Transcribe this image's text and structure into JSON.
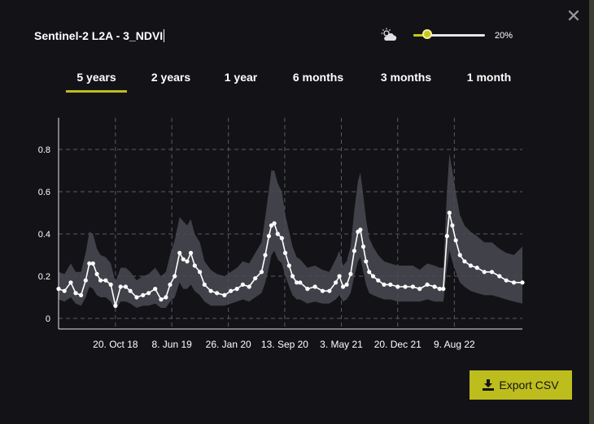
{
  "header": {
    "title": "Sentinel-2 L2A - 3_NDVI",
    "close_icon": "close-icon",
    "cloud_icon": "cloud-sun-icon",
    "cloud_coverage_label": "20%",
    "cloud_coverage_fraction": 0.2
  },
  "tabs": [
    {
      "label": "5 years",
      "active": true
    },
    {
      "label": "2 years",
      "active": false
    },
    {
      "label": "1 year",
      "active": false
    },
    {
      "label": "6 months",
      "active": false
    },
    {
      "label": "3 months",
      "active": false
    },
    {
      "label": "1 month",
      "active": false
    }
  ],
  "export": {
    "label": "Export CSV",
    "icon": "download-icon"
  },
  "colors": {
    "accent": "#bdbd1e",
    "background": "#131317",
    "band": "#4a4a52",
    "line": "#ffffff"
  },
  "chart_data": {
    "type": "line",
    "x_type": "date",
    "x_range": [
      "2018-03-01",
      "2023-05-15"
    ],
    "ylim": [
      -0.05,
      0.95
    ],
    "yticks": [
      0,
      0.2,
      0.4,
      0.6,
      0.8
    ],
    "ytick_labels": [
      "0",
      "0.2",
      "0.4",
      "0.6",
      "0.8"
    ],
    "xticks": [
      "2018-10-20",
      "2019-06-08",
      "2020-01-26",
      "2020-09-13",
      "2021-05-03",
      "2021-12-20",
      "2022-08-09"
    ],
    "xtick_labels": [
      "20. Oct 18",
      "8. Jun 19",
      "26. Jan 20",
      "13. Sep 20",
      "3. May 21",
      "20. Dec 21",
      "9. Aug 22"
    ],
    "grid": true,
    "series": [
      {
        "x": [
          "2018-03-01",
          "2018-03-25",
          "2018-04-20",
          "2018-05-10",
          "2018-06-01",
          "2018-06-20",
          "2018-07-05",
          "2018-07-20",
          "2018-08-05",
          "2018-08-20",
          "2018-09-10",
          "2018-10-01",
          "2018-10-20",
          "2018-11-10",
          "2018-12-01",
          "2018-12-20",
          "2019-01-15",
          "2019-02-10",
          "2019-03-05",
          "2019-04-01",
          "2019-04-25",
          "2019-05-15",
          "2019-06-01",
          "2019-06-20",
          "2019-07-10",
          "2019-07-25",
          "2019-08-10",
          "2019-08-25",
          "2019-09-10",
          "2019-10-01",
          "2019-10-20",
          "2019-11-15",
          "2019-12-10",
          "2020-01-10",
          "2020-02-05",
          "2020-03-01",
          "2020-03-25",
          "2020-04-20",
          "2020-05-15",
          "2020-06-10",
          "2020-06-25",
          "2020-07-10",
          "2020-07-20",
          "2020-08-01",
          "2020-08-15",
          "2020-09-01",
          "2020-09-15",
          "2020-10-01",
          "2020-10-15",
          "2020-11-01",
          "2020-11-15",
          "2020-12-15",
          "2021-01-15",
          "2021-02-15",
          "2021-03-15",
          "2021-04-10",
          "2021-04-25",
          "2021-05-10",
          "2021-05-25",
          "2021-06-10",
          "2021-06-25",
          "2021-07-10",
          "2021-07-20",
          "2021-08-01",
          "2021-08-12",
          "2021-08-25",
          "2021-09-10",
          "2021-10-01",
          "2021-10-25",
          "2021-11-20",
          "2021-12-20",
          "2022-01-20",
          "2022-02-20",
          "2022-03-20",
          "2022-04-20",
          "2022-05-20",
          "2022-06-10",
          "2022-06-25",
          "2022-07-10",
          "2022-07-20",
          "2022-08-01",
          "2022-08-15",
          "2022-09-01",
          "2022-09-20",
          "2022-10-15",
          "2022-11-10",
          "2022-12-10",
          "2023-01-10",
          "2023-02-10",
          "2023-03-10",
          "2023-04-10",
          "2023-05-15"
        ],
        "values": [
          0.14,
          0.13,
          0.17,
          0.12,
          0.11,
          0.18,
          0.26,
          0.26,
          0.21,
          0.18,
          0.18,
          0.16,
          0.06,
          0.15,
          0.15,
          0.13,
          0.1,
          0.11,
          0.12,
          0.14,
          0.09,
          0.1,
          0.16,
          0.2,
          0.31,
          0.28,
          0.27,
          0.31,
          0.25,
          0.22,
          0.16,
          0.13,
          0.12,
          0.11,
          0.13,
          0.14,
          0.16,
          0.15,
          0.19,
          0.22,
          0.3,
          0.39,
          0.44,
          0.45,
          0.4,
          0.38,
          0.31,
          0.25,
          0.2,
          0.17,
          0.17,
          0.14,
          0.15,
          0.13,
          0.13,
          0.17,
          0.2,
          0.15,
          0.16,
          0.21,
          0.32,
          0.41,
          0.42,
          0.34,
          0.27,
          0.22,
          0.2,
          0.18,
          0.16,
          0.16,
          0.15,
          0.15,
          0.15,
          0.14,
          0.16,
          0.15,
          0.14,
          0.14,
          0.39,
          0.5,
          0.44,
          0.37,
          0.3,
          0.27,
          0.25,
          0.24,
          0.22,
          0.22,
          0.2,
          0.18,
          0.17,
          0.17
        ],
        "band_lower": [
          0.09,
          0.08,
          0.1,
          0.07,
          0.06,
          0.1,
          0.15,
          0.14,
          0.11,
          0.1,
          0.1,
          0.08,
          0.04,
          0.08,
          0.08,
          0.07,
          0.05,
          0.06,
          0.06,
          0.07,
          0.05,
          0.05,
          0.08,
          0.1,
          0.17,
          0.14,
          0.14,
          0.16,
          0.13,
          0.11,
          0.08,
          0.06,
          0.06,
          0.06,
          0.07,
          0.08,
          0.09,
          0.08,
          0.1,
          0.12,
          0.17,
          0.24,
          0.3,
          0.32,
          0.28,
          0.26,
          0.2,
          0.15,
          0.11,
          0.09,
          0.09,
          0.07,
          0.08,
          0.07,
          0.07,
          0.09,
          0.11,
          0.08,
          0.09,
          0.12,
          0.2,
          0.27,
          0.29,
          0.22,
          0.16,
          0.12,
          0.11,
          0.1,
          0.09,
          0.09,
          0.08,
          0.08,
          0.08,
          0.08,
          0.09,
          0.08,
          0.08,
          0.08,
          0.24,
          0.32,
          0.27,
          0.22,
          0.17,
          0.15,
          0.13,
          0.12,
          0.11,
          0.11,
          0.1,
          0.09,
          0.08,
          0.07
        ],
        "band_upper": [
          0.22,
          0.21,
          0.26,
          0.22,
          0.22,
          0.31,
          0.41,
          0.4,
          0.33,
          0.3,
          0.29,
          0.26,
          0.17,
          0.24,
          0.24,
          0.22,
          0.18,
          0.2,
          0.21,
          0.24,
          0.2,
          0.22,
          0.3,
          0.37,
          0.48,
          0.46,
          0.44,
          0.47,
          0.4,
          0.36,
          0.27,
          0.23,
          0.21,
          0.2,
          0.22,
          0.24,
          0.27,
          0.26,
          0.31,
          0.36,
          0.48,
          0.61,
          0.7,
          0.7,
          0.64,
          0.6,
          0.49,
          0.41,
          0.34,
          0.29,
          0.28,
          0.24,
          0.25,
          0.23,
          0.22,
          0.28,
          0.32,
          0.25,
          0.27,
          0.34,
          0.51,
          0.65,
          0.69,
          0.58,
          0.47,
          0.38,
          0.34,
          0.3,
          0.27,
          0.26,
          0.25,
          0.25,
          0.25,
          0.23,
          0.26,
          0.25,
          0.24,
          0.24,
          0.6,
          0.78,
          0.7,
          0.6,
          0.49,
          0.44,
          0.41,
          0.39,
          0.36,
          0.36,
          0.33,
          0.31,
          0.3,
          0.34
        ]
      }
    ]
  }
}
